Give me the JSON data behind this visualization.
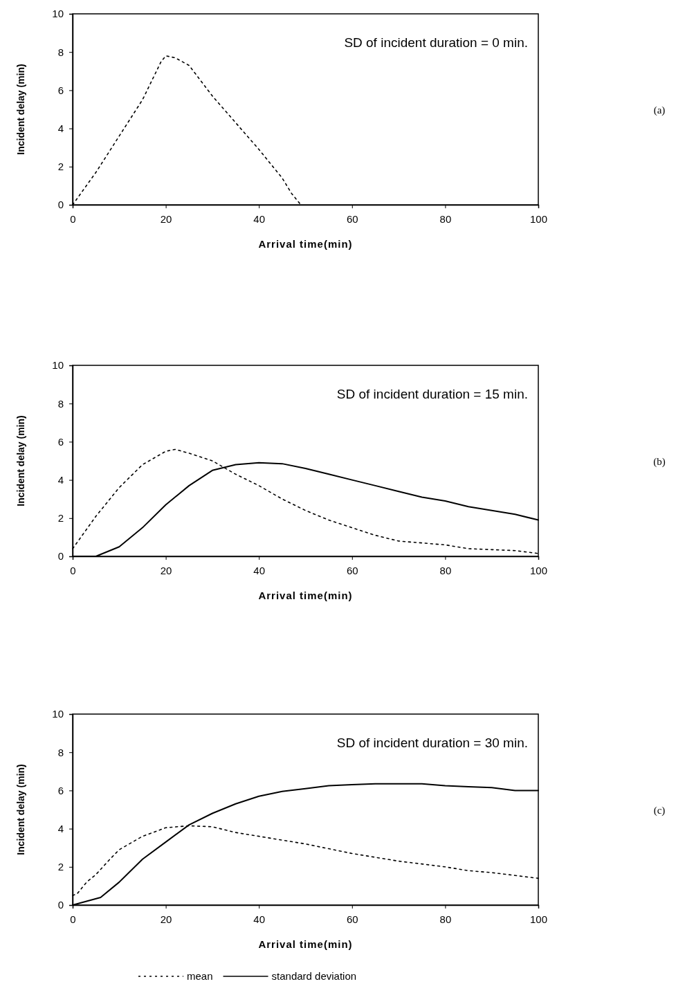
{
  "chart_data": [
    {
      "type": "line",
      "xlabel": "Arrival time(min)",
      "ylabel": "Incident delay (min)",
      "annotations": [
        "SD of incident duration = 0 min.",
        "(a)"
      ],
      "xlim": [
        0,
        100
      ],
      "ylim": [
        0,
        10
      ],
      "xticks": [
        0,
        20,
        40,
        60,
        80,
        100
      ],
      "yticks": [
        0,
        2,
        4,
        6,
        8,
        10
      ],
      "grid": false,
      "legend": false,
      "series": [
        {
          "color": "#000000",
          "line_style": "dotted",
          "x": [
            0,
            5,
            10,
            15,
            19,
            20,
            22,
            25,
            30,
            35,
            40,
            45,
            47,
            49
          ],
          "values": [
            0,
            1.7,
            3.6,
            5.5,
            7.5,
            7.8,
            7.7,
            7.3,
            5.7,
            4.3,
            2.9,
            1.4,
            0.6,
            0
          ]
        }
      ]
    },
    {
      "type": "line",
      "xlabel": "Arrival time(min)",
      "ylabel": "Incident delay (min)",
      "annotations": [
        "SD of incident duration = 15 min.",
        "(b)"
      ],
      "xlim": [
        0,
        100
      ],
      "ylim": [
        0,
        10
      ],
      "xticks": [
        0,
        20,
        40,
        60,
        80,
        100
      ],
      "yticks": [
        0,
        2,
        4,
        6,
        8,
        10
      ],
      "grid": false,
      "legend": false,
      "series": [
        {
          "color": "#000000",
          "line_style": "dotted",
          "x": [
            0,
            5,
            10,
            15,
            20,
            22,
            25,
            30,
            35,
            40,
            45,
            50,
            55,
            60,
            65,
            70,
            75,
            80,
            85,
            90,
            95,
            100
          ],
          "values": [
            0.4,
            2.1,
            3.6,
            4.8,
            5.5,
            5.6,
            5.4,
            5.0,
            4.3,
            3.7,
            3.0,
            2.4,
            1.9,
            1.5,
            1.1,
            0.8,
            0.7,
            0.6,
            0.4,
            0.35,
            0.3,
            0.15
          ]
        },
        {
          "color": "#000000",
          "line_style": "solid",
          "x": [
            0,
            5,
            10,
            15,
            20,
            25,
            30,
            35,
            40,
            45,
            50,
            55,
            60,
            65,
            70,
            75,
            80,
            85,
            90,
            95,
            100
          ],
          "values": [
            0,
            0,
            0.5,
            1.5,
            2.7,
            3.7,
            4.5,
            4.8,
            4.9,
            4.85,
            4.6,
            4.3,
            4.0,
            3.7,
            3.4,
            3.1,
            2.9,
            2.6,
            2.4,
            2.2,
            1.9
          ]
        }
      ]
    },
    {
      "type": "line",
      "xlabel": "Arrival time(min)",
      "ylabel": "Incident delay (min)",
      "annotations": [
        "SD of incident duration = 30 min.",
        "(c)"
      ],
      "xlim": [
        0,
        100
      ],
      "ylim": [
        0,
        10
      ],
      "xticks": [
        0,
        20,
        40,
        60,
        80,
        100
      ],
      "yticks": [
        0,
        2,
        4,
        6,
        8,
        10
      ],
      "grid": false,
      "legend": "bottom",
      "series": [
        {
          "name": "mean",
          "color": "#000000",
          "line_style": "dotted",
          "x": [
            0,
            1,
            3,
            5,
            8,
            10,
            15,
            20,
            25,
            30,
            35,
            40,
            45,
            50,
            55,
            60,
            65,
            70,
            75,
            80,
            85,
            90,
            95,
            100
          ],
          "values": [
            0.5,
            0.6,
            1.2,
            1.6,
            2.4,
            2.9,
            3.6,
            4.05,
            4.15,
            4.1,
            3.8,
            3.6,
            3.4,
            3.2,
            2.95,
            2.7,
            2.5,
            2.3,
            2.15,
            2.0,
            1.8,
            1.7,
            1.55,
            1.4
          ]
        },
        {
          "name": "standard deviation",
          "color": "#000000",
          "line_style": "solid",
          "x": [
            0,
            3,
            6,
            10,
            15,
            20,
            25,
            30,
            35,
            40,
            45,
            50,
            55,
            60,
            65,
            70,
            75,
            80,
            85,
            90,
            95,
            100
          ],
          "values": [
            0,
            0.2,
            0.4,
            1.2,
            2.4,
            3.3,
            4.2,
            4.8,
            5.3,
            5.7,
            5.95,
            6.1,
            6.25,
            6.3,
            6.35,
            6.35,
            6.35,
            6.25,
            6.2,
            6.15,
            6.0,
            6.0
          ]
        }
      ]
    }
  ]
}
